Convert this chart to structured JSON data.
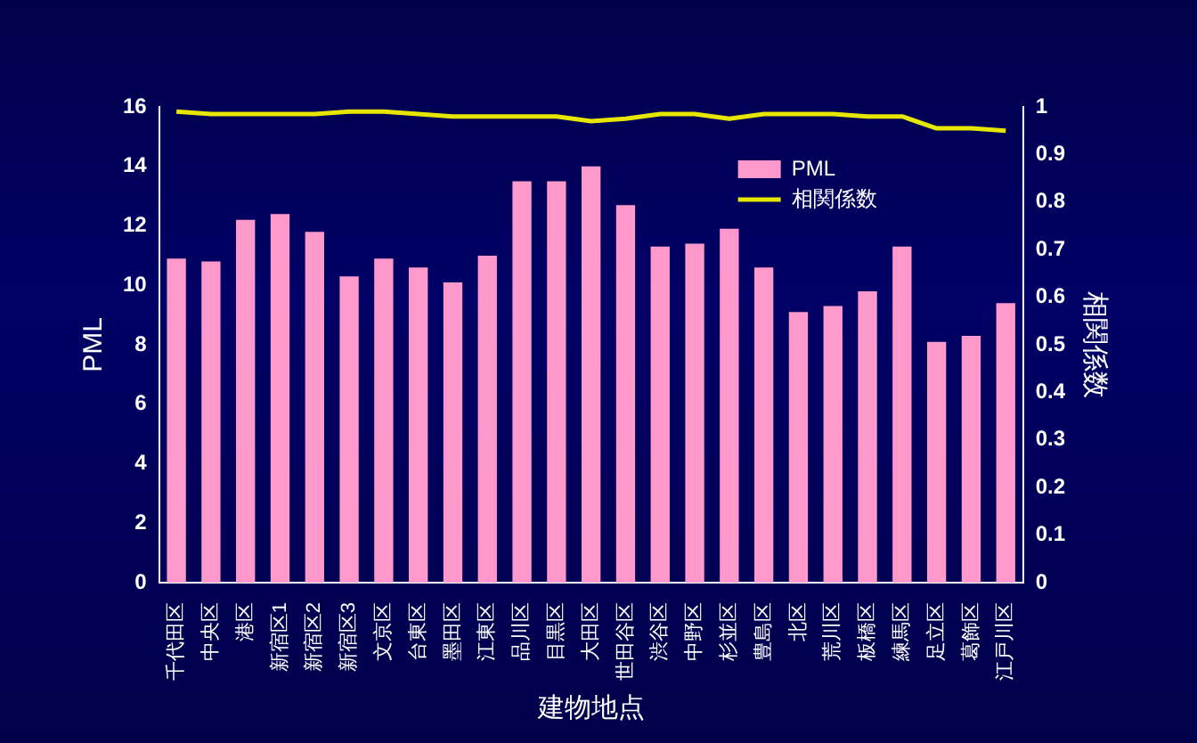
{
  "chart_data": {
    "type": "bar",
    "xlabel": "建物地点",
    "ylabel": "PML",
    "y2label": "相関係数",
    "categories": [
      "千代田区",
      "中央区",
      "港区",
      "新宿区1",
      "新宿区2",
      "新宿区3",
      "文京区",
      "台東区",
      "墨田区",
      "江東区",
      "品川区",
      "目黒区",
      "大田区",
      "世田谷区",
      "渋谷区",
      "中野区",
      "杉並区",
      "豊島区",
      "北区",
      "荒川区",
      "板橋区",
      "練馬区",
      "足立区",
      "葛飾区",
      "江戸川区"
    ],
    "series": [
      {
        "name": "PML",
        "color": "#ff99cc",
        "values": [
          10.9,
          10.8,
          12.2,
          12.4,
          11.8,
          10.3,
          10.9,
          10.6,
          10.1,
          11.0,
          13.5,
          13.5,
          14.0,
          12.7,
          11.3,
          11.4,
          11.9,
          10.6,
          9.1,
          9.3,
          9.8,
          11.3,
          8.1,
          8.3,
          9.4
        ]
      },
      {
        "name": "相関係数",
        "type": "line",
        "axis": "y2",
        "color": "#e6e600",
        "values": [
          0.99,
          0.985,
          0.985,
          0.985,
          0.985,
          0.99,
          0.99,
          0.985,
          0.98,
          0.98,
          0.98,
          0.98,
          0.97,
          0.975,
          0.985,
          0.985,
          0.975,
          0.985,
          0.985,
          0.985,
          0.98,
          0.98,
          0.955,
          0.955,
          0.95
        ]
      }
    ],
    "ylim": [
      0,
      16
    ],
    "yticks": [
      0,
      2,
      4,
      6,
      8,
      10,
      12,
      14,
      16
    ],
    "y2lim": [
      0,
      1
    ],
    "y2ticks": [
      0,
      0.1,
      0.2,
      0.3,
      0.4,
      0.5,
      0.6,
      0.7,
      0.8,
      0.9,
      1
    ],
    "grid": false,
    "legend": "top right",
    "marker": "none",
    "line_style": "solid"
  }
}
